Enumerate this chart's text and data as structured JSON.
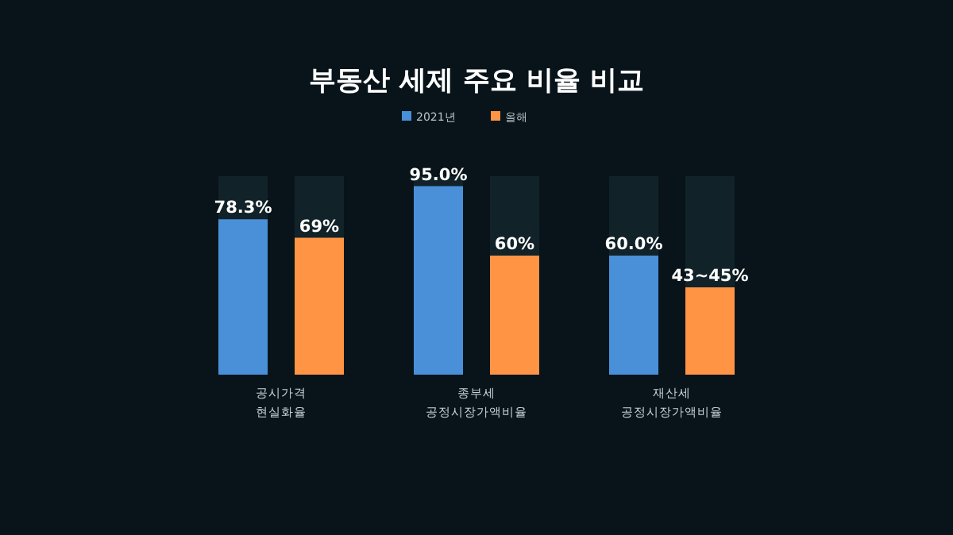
{
  "chart_data": {
    "type": "bar",
    "title": "부동산 세제 주요 비율 비교",
    "categories": [
      "공시가격 현실화율",
      "종부세 공정시장가액비율",
      "재산세 공정시장가액비율"
    ],
    "ylim": [
      0,
      100
    ],
    "legend": "top",
    "grid": false,
    "tick_labels": "x",
    "series": [
      {
        "name": "2021년",
        "color": "#4a90d9",
        "values": [
          78.3,
          95.0,
          60.0
        ],
        "value_labels": [
          "78.3%",
          "95.0%",
          "60.0%"
        ]
      },
      {
        "name": "올해",
        "color": "#ff9444",
        "values": [
          69,
          60,
          44
        ],
        "value_labels": [
          "69%",
          "60%",
          null
        ]
      }
    ],
    "annotations": [
      "43~45%"
    ]
  }
}
